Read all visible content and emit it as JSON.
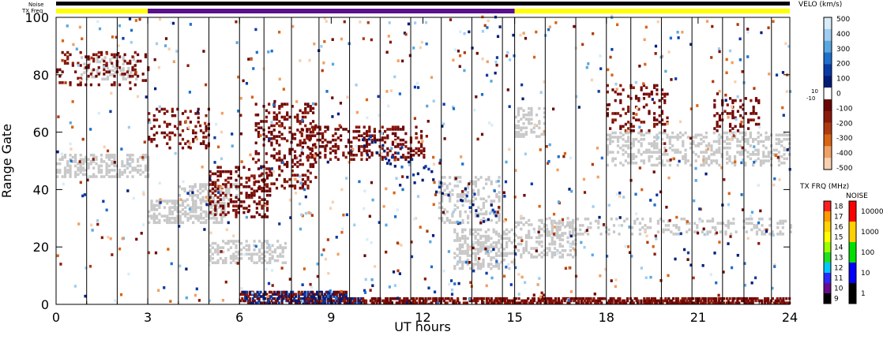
{
  "colors": {
    "background": "#ffffff",
    "ground_scatter": "#c8c8c8",
    "bar_yellow": "#ffff00",
    "bar_purple": "#5a0f8c",
    "bar_black": "#000000"
  },
  "chart_data": {
    "type": "heatmap",
    "xlabel": "UT hours",
    "ylabel": "Range Gate",
    "xlim": [
      0,
      24
    ],
    "ylim": [
      0,
      100
    ],
    "x_ticks": [
      "0",
      "3",
      "6",
      "9",
      "12",
      "15",
      "18",
      "21",
      "24"
    ],
    "y_ticks": [
      "0",
      "20",
      "40",
      "60",
      "80",
      "100"
    ],
    "grid": "vertical lines at scan boundaries",
    "top_bars": {
      "noise_label": "Noise",
      "txfreq_label": "TX Freq",
      "noise_color": "black",
      "txfreq_segments": [
        {
          "start": 0,
          "end": 3,
          "freq_mhz": 15,
          "color": "#ffff00"
        },
        {
          "start": 3,
          "end": 15,
          "freq_mhz": 10,
          "color": "#5a0f8c"
        },
        {
          "start": 15,
          "end": 24,
          "freq_mhz": 15,
          "color": "#ffff00"
        }
      ]
    },
    "scan_boundaries_ut": [
      1,
      2,
      3,
      4,
      5,
      6,
      6.8,
      7.7,
      8.6,
      9.6,
      10.6,
      11.6,
      12.6,
      13.6,
      14.6,
      15,
      16,
      17,
      18,
      18.8,
      19.8,
      20.8,
      21.8,
      22.5,
      23.4
    ],
    "colorbars": {
      "velocity": {
        "title": "VELO (km/s)",
        "ticks": [
          "500",
          "400",
          "300",
          "200",
          "100",
          "0",
          "-100",
          "-200",
          "-300",
          "-400",
          "-500"
        ],
        "side_labels": [
          "10",
          "-10"
        ],
        "scale": [
          "#d8ecf8",
          "#a0cdef",
          "#5aa8e0",
          "#1f6fcc",
          "#0a3aa6",
          "#021d78",
          "#ffffff",
          "#6a0606",
          "#8c1a0a",
          "#b03a10",
          "#d86414",
          "#f0a064",
          "#f8d0b0"
        ]
      },
      "tx_freq": {
        "title": "TX FRQ (MHz)",
        "ticks": [
          "18",
          "17",
          "16",
          "15",
          "14",
          "13",
          "12",
          "11",
          "10",
          "9"
        ],
        "scale": [
          "#ff2020",
          "#ff9a00",
          "#ffd200",
          "#ffff00",
          "#9aff00",
          "#20e020",
          "#00c8ff",
          "#2a2aff",
          "#6a0a8c",
          "#000000"
        ]
      },
      "noise": {
        "title": "NOISE",
        "ticks": [
          "10000",
          "1000",
          "100",
          "10",
          "1"
        ],
        "scale": [
          "#ff0000",
          "#ffd000",
          "#00e000",
          "#0000ff",
          "#000000"
        ]
      }
    }
  }
}
